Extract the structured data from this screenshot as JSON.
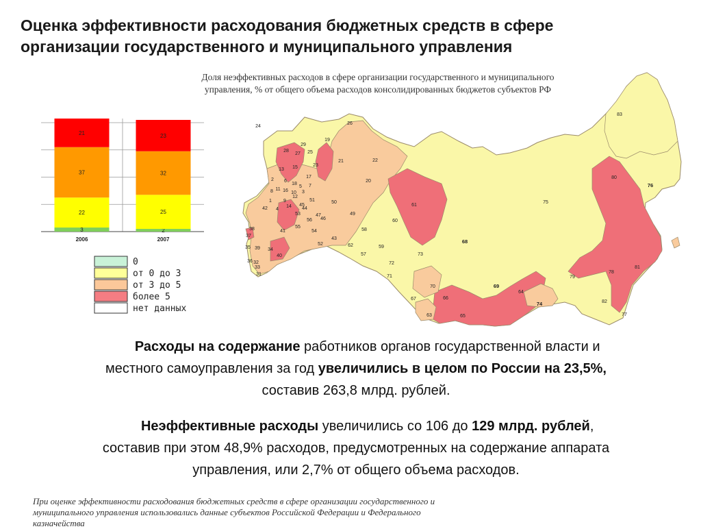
{
  "title": {
    "line1": "Оценка эффективности расходования бюджетных средств в сфере",
    "line2": "организации государственного и муниципального управления"
  },
  "map_caption": {
    "line1": "Доля неэффективных расходов в сфере организации государственного и муниципального",
    "line2": "управления, % от общего объема расходов консолидированных бюджетов субъектов РФ"
  },
  "chart_data": {
    "type": "bar",
    "stacked": true,
    "categories": [
      "2006",
      "2007"
    ],
    "series": [
      {
        "name": "0",
        "color": "#7fcf5a",
        "values": [
          3,
          2
        ]
      },
      {
        "name": "от 0 до 3",
        "color": "#ffff00",
        "values": [
          22,
          25
        ]
      },
      {
        "name": "от 3 до 5",
        "color": "#ff9900",
        "values": [
          37,
          32
        ]
      },
      {
        "name": "более 5",
        "color": "#ff0000",
        "values": [
          21,
          23
        ]
      }
    ],
    "ylim": [
      0,
      83
    ],
    "grid": true
  },
  "legend": {
    "items": [
      {
        "label": "0",
        "color": "#c9f2d8"
      },
      {
        "label": "от 0 до 3",
        "color": "#ffff99"
      },
      {
        "label": "от 3 до 5",
        "color": "#fcc89a"
      },
      {
        "label": "более 5",
        "color": "#f57d83"
      },
      {
        "label": "нет данных",
        "color": "#ffffff"
      }
    ]
  },
  "map": {
    "colors": {
      "light_yellow": "#faf7a8",
      "peach": "#f9cb9d",
      "red": "#ef6f78",
      "outline": "#9a8a6a"
    },
    "regions": [
      {
        "id": "24",
        "bold": false
      },
      {
        "id": "26",
        "bold": false
      },
      {
        "id": "19",
        "bold": false
      },
      {
        "id": "29",
        "bold": false
      },
      {
        "id": "28",
        "bold": false
      },
      {
        "id": "27",
        "bold": false
      },
      {
        "id": "25",
        "bold": false
      },
      {
        "id": "23",
        "bold": false
      },
      {
        "id": "21",
        "bold": false
      },
      {
        "id": "22",
        "bold": false
      },
      {
        "id": "13",
        "bold": false
      },
      {
        "id": "15",
        "bold": false
      },
      {
        "id": "20",
        "bold": false
      },
      {
        "id": "83",
        "bold": false
      },
      {
        "id": "2",
        "bold": false
      },
      {
        "id": "6",
        "bold": false
      },
      {
        "id": "18",
        "bold": false
      },
      {
        "id": "17",
        "bold": false
      },
      {
        "id": "7",
        "bold": false
      },
      {
        "id": "5",
        "bold": false
      },
      {
        "id": "8",
        "bold": false
      },
      {
        "id": "11",
        "bold": false
      },
      {
        "id": "16",
        "bold": false
      },
      {
        "id": "10",
        "bold": false
      },
      {
        "id": "3",
        "bold": false
      },
      {
        "id": "12",
        "bold": false
      },
      {
        "id": "1",
        "bold": false
      },
      {
        "id": "9",
        "bold": false
      },
      {
        "id": "51",
        "bold": false
      },
      {
        "id": "14",
        "bold": false
      },
      {
        "id": "45",
        "bold": false
      },
      {
        "id": "50",
        "bold": false
      },
      {
        "id": "4",
        "bold": false
      },
      {
        "id": "44",
        "bold": false
      },
      {
        "id": "53",
        "bold": false
      },
      {
        "id": "47",
        "bold": false
      },
      {
        "id": "49",
        "bold": false
      },
      {
        "id": "42",
        "bold": false
      },
      {
        "id": "56",
        "bold": false
      },
      {
        "id": "46",
        "bold": false
      },
      {
        "id": "61",
        "bold": false
      },
      {
        "id": "80",
        "bold": false
      },
      {
        "id": "76",
        "bold": true
      },
      {
        "id": "55",
        "bold": false
      },
      {
        "id": "38",
        "bold": false
      },
      {
        "id": "41",
        "bold": false
      },
      {
        "id": "54",
        "bold": false
      },
      {
        "id": "58",
        "bold": false
      },
      {
        "id": "60",
        "bold": false
      },
      {
        "id": "75",
        "bold": false
      },
      {
        "id": "37",
        "bold": false
      },
      {
        "id": "43",
        "bold": false
      },
      {
        "id": "68",
        "bold": true
      },
      {
        "id": "52",
        "bold": false
      },
      {
        "id": "62",
        "bold": false
      },
      {
        "id": "59",
        "bold": false
      },
      {
        "id": "35",
        "bold": false
      },
      {
        "id": "39",
        "bold": false
      },
      {
        "id": "34",
        "bold": false
      },
      {
        "id": "40",
        "bold": false
      },
      {
        "id": "57",
        "bold": false
      },
      {
        "id": "73",
        "bold": false
      },
      {
        "id": "36",
        "bold": false
      },
      {
        "id": "32",
        "bold": false
      },
      {
        "id": "72",
        "bold": false
      },
      {
        "id": "33",
        "bold": false
      },
      {
        "id": "31",
        "bold": false
      },
      {
        "id": "71",
        "bold": false
      },
      {
        "id": "81",
        "bold": false
      },
      {
        "id": "79",
        "bold": false
      },
      {
        "id": "78",
        "bold": false
      },
      {
        "id": "70",
        "bold": false
      },
      {
        "id": "69",
        "bold": true
      },
      {
        "id": "64",
        "bold": false
      },
      {
        "id": "67",
        "bold": false
      },
      {
        "id": "66",
        "bold": false
      },
      {
        "id": "82",
        "bold": false
      },
      {
        "id": "74",
        "bold": true
      },
      {
        "id": "65",
        "bold": false
      },
      {
        "id": "63",
        "bold": false
      },
      {
        "id": "77",
        "bold": false
      }
    ]
  },
  "paragraph1": {
    "bold_a": "Расходы на содержание",
    "text_a": " работников органов государственной власти и",
    "text_b": "местного самоуправления за год ",
    "bold_b": "увеличились в целом по России на 23,5%,",
    "text_c": "составив 263,8 млрд. рублей."
  },
  "paragraph2": {
    "bold_a": "Неэффективные расходы",
    "text_a": " увеличились со 106 до ",
    "bold_b": "129 млрд. рублей",
    "text_b": ",",
    "text_c": "составив при этом 48,9% расходов, предусмотренных на содержание аппарата",
    "text_d": "управления, или 2,7% от общего объема расходов."
  },
  "footnote": {
    "line1": "При оценке эффективности расходования бюджетных средств в сфере организации государственного и",
    "line2": "муниципального управления использовались данные субъектов Российской Федерации и Федерального",
    "line3": "казначейства"
  }
}
